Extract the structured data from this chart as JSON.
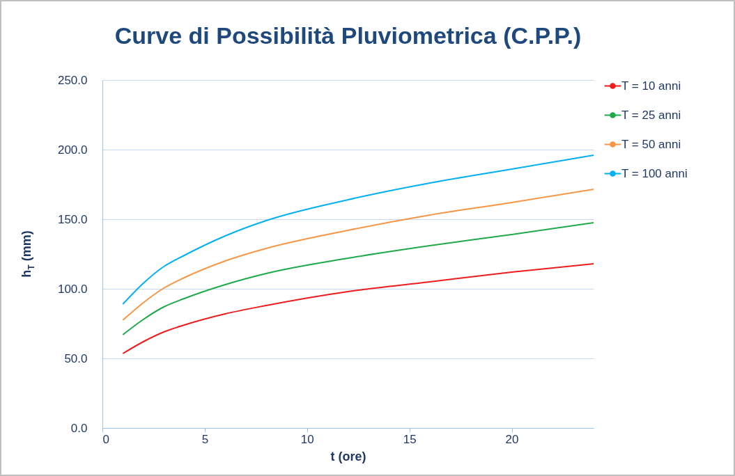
{
  "chart_data": {
    "type": "line",
    "title": "Curve di Possibilità Pluviometrica (C.P.P.)",
    "xlabel": "t (ore)",
    "ylabel": "h$_{T}$ (mm)",
    "x": [
      1,
      2,
      3,
      4,
      6,
      8,
      12,
      16,
      20,
      24
    ],
    "series": [
      {
        "name": "T = 10 anni",
        "color": "#ee1c1c",
        "values": [
          53.5,
          62,
          69,
          74,
          82,
          88,
          98,
          105,
          112,
          118
        ]
      },
      {
        "name": "T = 25 anni",
        "color": "#1ea94a",
        "values": [
          67,
          78,
          87,
          93,
          103,
          111,
          122,
          131,
          139,
          147.5
        ]
      },
      {
        "name": "T = 50 anni",
        "color": "#f79646",
        "values": [
          77.5,
          90,
          100.5,
          108,
          120,
          129,
          142,
          153,
          162,
          171.5
        ]
      },
      {
        "name": "T = 100 anni",
        "color": "#00b0f0",
        "values": [
          89,
          104,
          116,
          124,
          138,
          149,
          164,
          176,
          186,
          196
        ]
      }
    ],
    "xlim": [
      0,
      24
    ],
    "xticks": [
      0,
      5,
      10,
      15,
      20
    ],
    "ylim": [
      0,
      250
    ],
    "yticks": [
      {
        "value": 0,
        "label": "0.0"
      },
      {
        "value": 50,
        "label": "50.0"
      },
      {
        "value": 100,
        "label": "100.0"
      },
      {
        "value": 150,
        "label": "150.0"
      },
      {
        "value": 200,
        "label": "200.0"
      },
      {
        "value": 250,
        "label": "250.0"
      }
    ],
    "grid": "y",
    "legend": "right",
    "marker": "none",
    "line_style": "solid"
  }
}
